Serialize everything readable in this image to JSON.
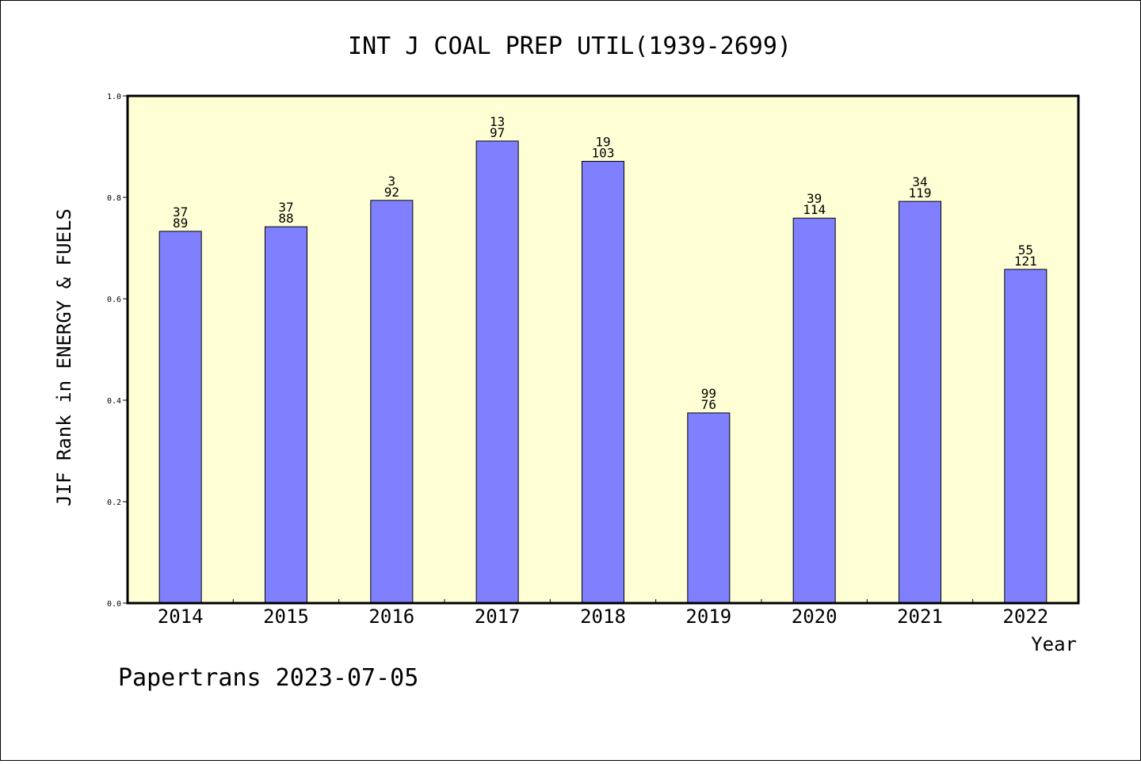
{
  "chart_data": {
    "type": "bar",
    "title": "INT J COAL PREP UTIL(1939-2699)",
    "xlabel": "Year",
    "ylabel": "JIF Rank in ENERGY & FUELS",
    "categories": [
      "2014",
      "2015",
      "2016",
      "2017",
      "2018",
      "2019",
      "2020",
      "2021",
      "2022"
    ],
    "values": [
      0.733,
      0.742,
      0.794,
      0.911,
      0.871,
      0.375,
      0.759,
      0.792,
      0.658
    ],
    "bar_labels_top": [
      "37",
      "37",
      "3",
      "13",
      "19",
      "99",
      "39",
      "34",
      "55"
    ],
    "bar_labels_bottom": [
      "89",
      "88",
      "92",
      "97",
      "103",
      "76",
      "114",
      "119",
      "121"
    ],
    "ylim": [
      0.0,
      1.0
    ],
    "yticks": [
      "0.0",
      "0.2",
      "0.4",
      "0.6",
      "0.8",
      "1.0"
    ],
    "ytick_values": [
      0.0,
      0.2,
      0.4,
      0.6,
      0.8,
      1.0
    ],
    "grid": false,
    "colors": {
      "bar_fill": "#8080ff",
      "plot_background": "#ffffd6",
      "axis": "#000000"
    }
  },
  "footer": "Papertrans 2023-07-05"
}
